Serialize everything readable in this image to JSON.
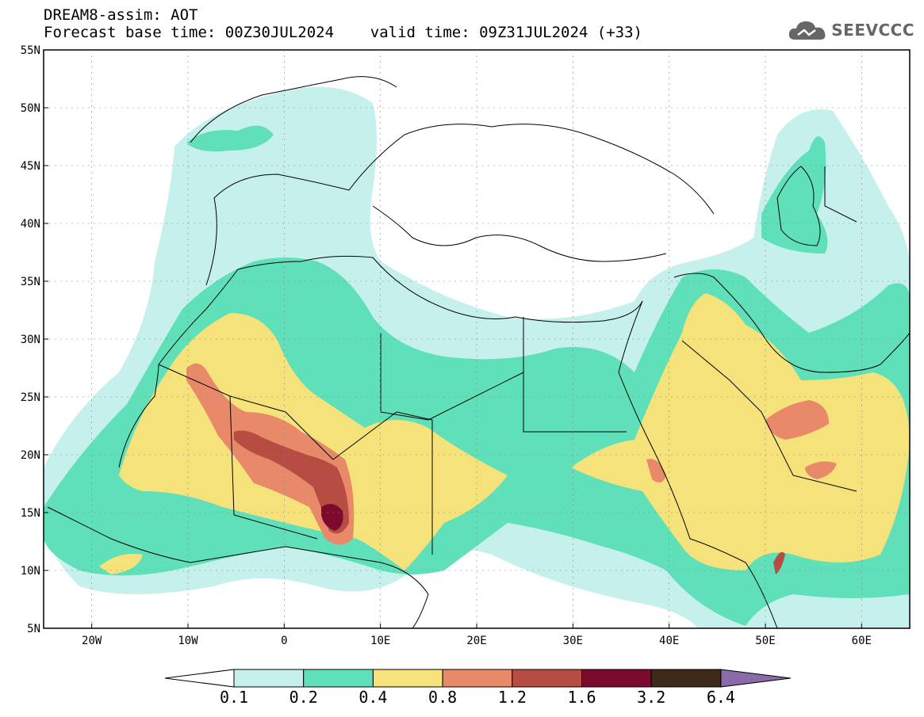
{
  "header": {
    "title_line1": "DREAM8-assim: AOT",
    "title_line2": "Forecast base time: 00Z30JUL2024    valid time: 09Z31JUL2024 (+33)",
    "logo_text": "SEEVCCC"
  },
  "map": {
    "lat_labels": [
      "55N",
      "50N",
      "45N",
      "40N",
      "35N",
      "30N",
      "25N",
      "20N",
      "15N",
      "10N",
      "5N"
    ],
    "lon_labels": [
      "20W",
      "10W",
      "0",
      "10E",
      "20E",
      "30E",
      "40E",
      "50E",
      "60E"
    ]
  },
  "colorbar": {
    "labels": [
      "0.1",
      "0.2",
      "0.4",
      "0.8",
      "1.2",
      "1.6",
      "3.2",
      "6.4"
    ],
    "colors": [
      "#ffffff",
      "#c6f0ec",
      "#5fe0b8",
      "#f5e27a",
      "#e8896a",
      "#b74d42",
      "#7b0a2c",
      "#3d2a1a",
      "#8a6aa8"
    ]
  },
  "colors": {
    "aot_0_1": "#c6f0ec",
    "aot_0_2": "#5fe0b8",
    "aot_0_4": "#f5e27a",
    "aot_0_8": "#e8896a",
    "aot_1_2": "#b74d42",
    "aot_1_6": "#7b0a2c"
  }
}
